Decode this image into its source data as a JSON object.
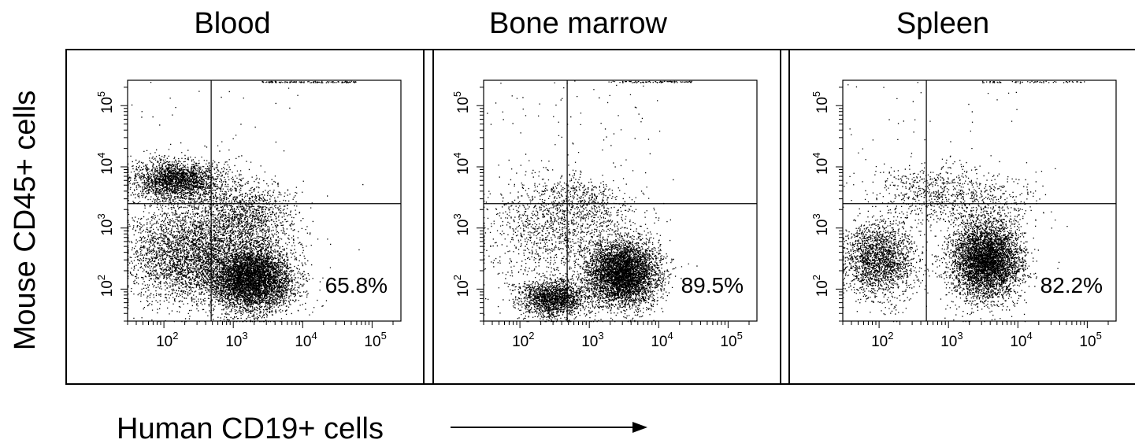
{
  "y_axis_label": "Mouse CD45+ cells",
  "x_axis_label": "Human CD19+ cells",
  "colors": {
    "ink": "#000000",
    "background": "#ffffff"
  },
  "chart_data": [
    {
      "type": "scatter",
      "title": "Blood",
      "xlabel": "Human CD19+ cells",
      "ylabel": "Mouse CD45+ cells",
      "xscale": "log",
      "yscale": "log",
      "xlim": [
        30,
        260000
      ],
      "ylim": [
        30,
        260000
      ],
      "x_ticks": [
        "10^2",
        "10^3",
        "10^4",
        "10^5"
      ],
      "y_ticks": [
        "10^2",
        "10^3",
        "10^4",
        "10^5"
      ],
      "gate": {
        "x": 480,
        "y": 2500
      },
      "annotation": "65.8%",
      "populations": [
        {
          "center": [
            1800,
            150
          ],
          "spread": [
            0.3,
            0.26
          ],
          "count": 5200
        },
        {
          "center": [
            150,
            6000
          ],
          "spread": [
            0.32,
            0.16
          ],
          "count": 2300
        },
        {
          "center": [
            200,
            350
          ],
          "spread": [
            0.42,
            0.38
          ],
          "count": 2400
        },
        {
          "center": [
            500,
            600
          ],
          "spread": [
            0.55,
            0.5
          ],
          "count": 1100
        },
        {
          "center": [
            1500,
            1500
          ],
          "spread": [
            0.35,
            0.3
          ],
          "count": 1200
        }
      ],
      "ceiling_band": {
        "x_range": [
          2500,
          60000
        ],
        "count": 120
      },
      "sparse_events": 120
    },
    {
      "type": "scatter",
      "title": "Bone marrow",
      "xlabel": "Human CD19+ cells",
      "ylabel": "Mouse CD45+ cells",
      "xscale": "log",
      "yscale": "log",
      "xlim": [
        30,
        260000
      ],
      "ylim": [
        30,
        260000
      ],
      "x_ticks": [
        "10^2",
        "10^3",
        "10^4",
        "10^5"
      ],
      "y_ticks": [
        "10^2",
        "10^3",
        "10^4",
        "10^5"
      ],
      "gate": {
        "x": 480,
        "y": 2500
      },
      "annotation": "89.5%",
      "populations": [
        {
          "center": [
            3000,
            180
          ],
          "spread": [
            0.25,
            0.26
          ],
          "count": 4800
        },
        {
          "center": [
            300,
            70
          ],
          "spread": [
            0.25,
            0.15
          ],
          "count": 1800
        },
        {
          "center": [
            400,
            900
          ],
          "spread": [
            0.55,
            0.45
          ],
          "count": 1400
        },
        {
          "center": [
            800,
            2800
          ],
          "spread": [
            0.35,
            0.2
          ],
          "count": 300
        }
      ],
      "ceiling_band": {
        "x_range": [
          2000,
          30000
        ],
        "count": 80
      },
      "sparse_events": 150
    },
    {
      "type": "scatter",
      "title": "Spleen",
      "xlabel": "Human CD19+ cells",
      "ylabel": "Mouse CD45+ cells",
      "xscale": "log",
      "yscale": "log",
      "xlim": [
        30,
        260000
      ],
      "ylim": [
        30,
        260000
      ],
      "x_ticks": [
        "10^2",
        "10^3",
        "10^4",
        "10^5"
      ],
      "y_ticks": [
        "10^2",
        "10^3",
        "10^4",
        "10^5"
      ],
      "gate": {
        "x": 480,
        "y": 2500
      },
      "annotation": "82.2%",
      "populations": [
        {
          "center": [
            3500,
            300
          ],
          "spread": [
            0.25,
            0.32
          ],
          "count": 4800
        },
        {
          "center": [
            100,
            300
          ],
          "spread": [
            0.26,
            0.3
          ],
          "count": 2000
        },
        {
          "center": [
            500,
            4000
          ],
          "spread": [
            0.4,
            0.25
          ],
          "count": 500
        },
        {
          "center": [
            3000,
            2500
          ],
          "spread": [
            0.45,
            0.25
          ],
          "count": 400
        }
      ],
      "ceiling_band": {
        "x_range": [
          3000,
          100000
        ],
        "count": 60
      },
      "sparse_events": 110
    }
  ]
}
